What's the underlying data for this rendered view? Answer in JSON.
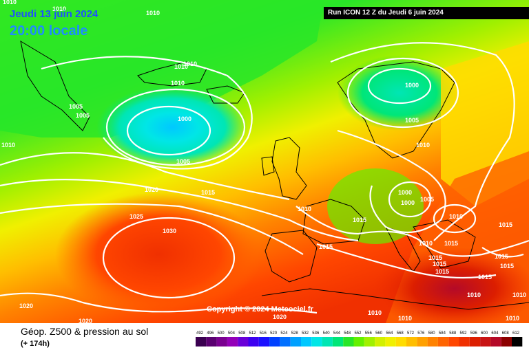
{
  "header": {
    "date": "Jeudi 13 juin 2024",
    "local_time": "20:00 locale",
    "run": "Run ICON 12 Z du Jeudi 6 juin 2024"
  },
  "copyright": "Copyright © 2024 Meteociel.fr",
  "legend": {
    "title": "Géop. Z500 & pression au sol",
    "forecast": "(+ 174h)",
    "ticks": [
      "492",
      "496",
      "500",
      "504",
      "508",
      "512",
      "516",
      "520",
      "524",
      "528",
      "532",
      "536",
      "540",
      "544",
      "548",
      "552",
      "556",
      "560",
      "564",
      "568",
      "572",
      "576",
      "580",
      "584",
      "588",
      "592",
      "596",
      "600",
      "604",
      "608",
      "612"
    ],
    "colors": [
      "#3a0050",
      "#5a0070",
      "#7a0090",
      "#9400b8",
      "#6a00d8",
      "#3c00f0",
      "#1a10ff",
      "#0040ff",
      "#0070ff",
      "#00a0ff",
      "#00c8ff",
      "#00e6e6",
      "#00e6b4",
      "#00e678",
      "#28e628",
      "#64f000",
      "#a0f000",
      "#d2f000",
      "#f0f000",
      "#ffdc00",
      "#ffbe00",
      "#ffa000",
      "#ff8200",
      "#ff6400",
      "#ff4600",
      "#f03000",
      "#dc1e00",
      "#c81414",
      "#b40a28",
      "#8c0000",
      "#000000"
    ]
  },
  "isobars": [
    {
      "label": "1010",
      "pos": "top-left"
    },
    {
      "label": "1010",
      "pos": "nw-coast"
    },
    {
      "label": "1010",
      "pos": "greenland"
    },
    {
      "label": "1010",
      "pos": "iceland-north"
    },
    {
      "label": "1010",
      "pos": "iceland-north-2"
    },
    {
      "label": "1010",
      "pos": "atlantic-north"
    },
    {
      "label": "1005",
      "pos": "greenland-south"
    },
    {
      "label": "1005",
      "pos": "greenland-south-2"
    },
    {
      "label": "1000",
      "pos": "iceland-low"
    },
    {
      "label": "1005",
      "pos": "iceland-low-ring"
    },
    {
      "label": "1010",
      "pos": "west-edge"
    },
    {
      "label": "1020",
      "pos": "mid-atlantic"
    },
    {
      "label": "1015",
      "pos": "mid-atlantic-2"
    },
    {
      "label": "1025",
      "pos": "azores"
    },
    {
      "label": "1030",
      "pos": "azores-high"
    },
    {
      "label": "1010",
      "pos": "ireland"
    },
    {
      "label": "1015",
      "pos": "france"
    },
    {
      "label": "1015",
      "pos": "biscay"
    },
    {
      "label": "1000",
      "pos": "scandinavia"
    },
    {
      "label": "1005",
      "pos": "baltic"
    },
    {
      "label": "1010",
      "pos": "poland"
    },
    {
      "label": "1000",
      "pos": "central-europe"
    },
    {
      "label": "1000",
      "pos": "central-europe-2"
    },
    {
      "label": "1005",
      "pos": "central-europe-3"
    },
    {
      "label": "1010",
      "pos": "balkans"
    },
    {
      "label": "1010",
      "pos": "italy"
    },
    {
      "label": "1015",
      "pos": "adriatic"
    },
    {
      "label": "1015",
      "pos": "black-sea-west"
    },
    {
      "label": "1015",
      "pos": "greece"
    },
    {
      "label": "1015",
      "pos": "greece-2"
    },
    {
      "label": "1015",
      "pos": "greece-3"
    },
    {
      "label": "1015",
      "pos": "turkey"
    },
    {
      "label": "1015",
      "pos": "turkey-2"
    },
    {
      "label": "1015",
      "pos": "aegean"
    },
    {
      "label": "1010",
      "pos": "east-med"
    },
    {
      "label": "1010",
      "pos": "east-med-2"
    },
    {
      "label": "1010",
      "pos": "east-edge"
    },
    {
      "label": "1010",
      "pos": "north-africa"
    },
    {
      "label": "1010",
      "pos": "north-africa-2"
    },
    {
      "label": "1020",
      "pos": "sw-corner"
    },
    {
      "label": "1020",
      "pos": "south-atlantic"
    },
    {
      "label": "1020",
      "pos": "morocco"
    }
  ]
}
